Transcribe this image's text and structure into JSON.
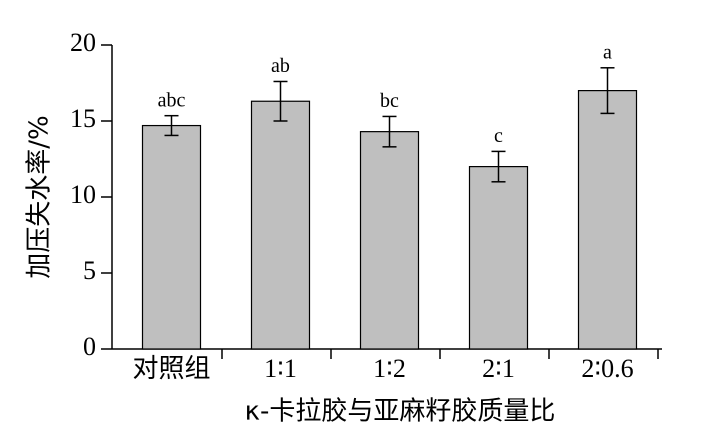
{
  "chart_data": {
    "type": "bar",
    "y_label": "加压失水率/%",
    "x_label": "κ-卡拉胶与亚麻籽胶质量比",
    "categories": [
      "对照组",
      "1∶1",
      "1∶2",
      "2∶1",
      "2∶0.6"
    ],
    "values": [
      14.7,
      16.3,
      14.3,
      12.0,
      17.0
    ],
    "errors": [
      0.65,
      1.3,
      1.0,
      1.0,
      1.5
    ],
    "value_labels": [
      "abc",
      "ab",
      "bc",
      "c",
      "a"
    ],
    "color": "#bfbfbf",
    "ylim": [
      0,
      20
    ],
    "yticks": [
      0,
      5,
      10,
      15,
      20
    ]
  }
}
